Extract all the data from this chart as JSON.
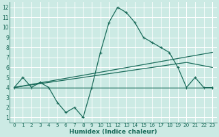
{
  "xlabel": "Humidex (Indice chaleur)",
  "bg_color": "#cceae4",
  "grid_color": "#ffffff",
  "line_color": "#1a6b5a",
  "xlim": [
    -0.5,
    23.5
  ],
  "ylim": [
    0.5,
    12.5
  ],
  "xticks": [
    0,
    1,
    2,
    3,
    4,
    5,
    6,
    7,
    8,
    9,
    10,
    11,
    12,
    13,
    14,
    15,
    16,
    17,
    18,
    19,
    20,
    21,
    22,
    23
  ],
  "yticks": [
    1,
    2,
    3,
    4,
    5,
    6,
    7,
    8,
    9,
    10,
    11,
    12
  ],
  "series1": {
    "x": [
      0,
      1,
      2,
      3,
      4,
      5,
      6,
      7,
      8,
      9,
      10,
      11,
      12,
      13,
      14,
      15,
      16,
      17,
      18,
      19,
      20,
      21,
      22,
      23
    ],
    "y": [
      4,
      5,
      4,
      4.5,
      4,
      2.5,
      1.5,
      2,
      1,
      4,
      7.5,
      10.5,
      12,
      11.5,
      10.5,
      9,
      8.5,
      8,
      7.5,
      6,
      4,
      5,
      4,
      4
    ]
  },
  "series2": {
    "x": [
      0,
      23
    ],
    "y": [
      4,
      4
    ]
  },
  "series3": {
    "x": [
      0,
      23
    ],
    "y": [
      4,
      7.5
    ]
  },
  "series4": {
    "x": [
      0,
      20,
      23
    ],
    "y": [
      4,
      6.5,
      6
    ]
  }
}
